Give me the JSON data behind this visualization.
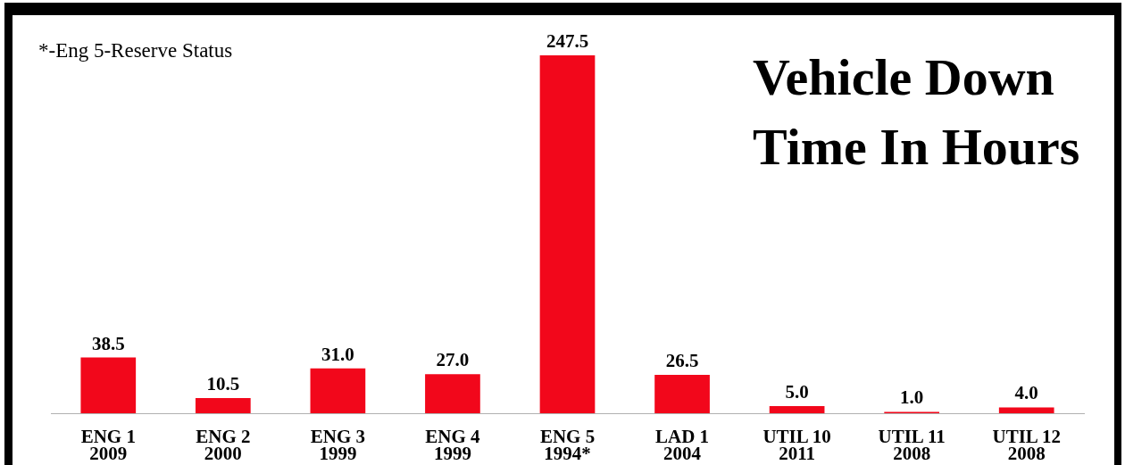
{
  "chart_data": {
    "type": "bar",
    "title": "Vehicle Down Time In Hours",
    "annotations": [
      "*-Eng 5-Reserve Status"
    ],
    "categories": [
      "ENG 1\n2009",
      "ENG 2\n2000",
      "ENG 3\n1999",
      "ENG 4\n1999",
      "ENG 5\n1994*",
      "LAD 1\n2004",
      "UTIL 10\n2011",
      "UTIL 11\n2008",
      "UTIL 12\n2008"
    ],
    "values": [
      38.5,
      10.5,
      31.0,
      27.0,
      247.5,
      26.5,
      5.0,
      1.0,
      4.0
    ],
    "value_labels": [
      "38.5",
      "10.5",
      "31.0",
      "27.0",
      "247.5",
      "26.5",
      "5.0",
      "1.0",
      "4.0"
    ],
    "color": "#f2071b",
    "tick_labels": "x"
  }
}
